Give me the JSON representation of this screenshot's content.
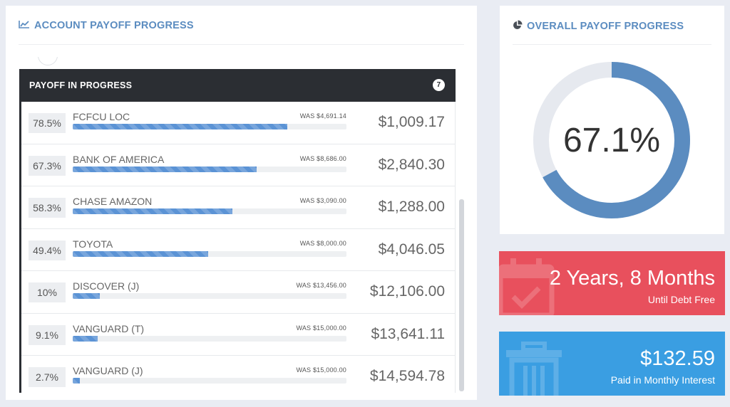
{
  "account_panel": {
    "title": "ACCOUNT PAYOFF PROGRESS",
    "icon": "line-chart-icon",
    "section": {
      "label": "PAYOFF IN PROGRESS",
      "count": "7"
    },
    "accounts": [
      {
        "percent": "78.5%",
        "progress": 0.785,
        "name": "FCFCU LOC",
        "was": "WAS $4,691.14",
        "balance": "$1,009.17"
      },
      {
        "percent": "67.3%",
        "progress": 0.673,
        "name": "BANK OF AMERICA",
        "was": "WAS $8,686.00",
        "balance": "$2,840.30"
      },
      {
        "percent": "58.3%",
        "progress": 0.583,
        "name": "CHASE AMAZON",
        "was": "WAS $3,090.00",
        "balance": "$1,288.00"
      },
      {
        "percent": "49.4%",
        "progress": 0.494,
        "name": "TOYOTA",
        "was": "WAS $8,000.00",
        "balance": "$4,046.05"
      },
      {
        "percent": "10%",
        "progress": 0.1,
        "name": "DISCOVER (J)",
        "was": "WAS $13,456.00",
        "balance": "$12,106.00"
      },
      {
        "percent": "9.1%",
        "progress": 0.091,
        "name": "VANGUARD (T)",
        "was": "WAS $15,000.00",
        "balance": "$13,641.11"
      },
      {
        "percent": "2.7%",
        "progress": 0.027,
        "name": "VANGUARD (J)",
        "was": "WAS $15,000.00",
        "balance": "$14,594.78"
      }
    ]
  },
  "overall_panel": {
    "title": "OVERALL PAYOFF PROGRESS",
    "icon": "pie-chart-icon",
    "value_label": "67.1%",
    "progress": 0.671
  },
  "debt_free_card": {
    "value": "2 Years, 8 Months",
    "caption": "Until Debt Free",
    "icon": "calendar-check-icon",
    "color": "#e8505d"
  },
  "interest_card": {
    "value": "$132.59",
    "caption": "Paid in Monthly Interest",
    "icon": "trash-icon",
    "color": "#3a9ee2"
  },
  "colors": {
    "accent": "#5b8cc0",
    "progress_fill": "#5b93d5",
    "section_header": "#2b2e33",
    "donut_track": "#e6e9ef"
  }
}
